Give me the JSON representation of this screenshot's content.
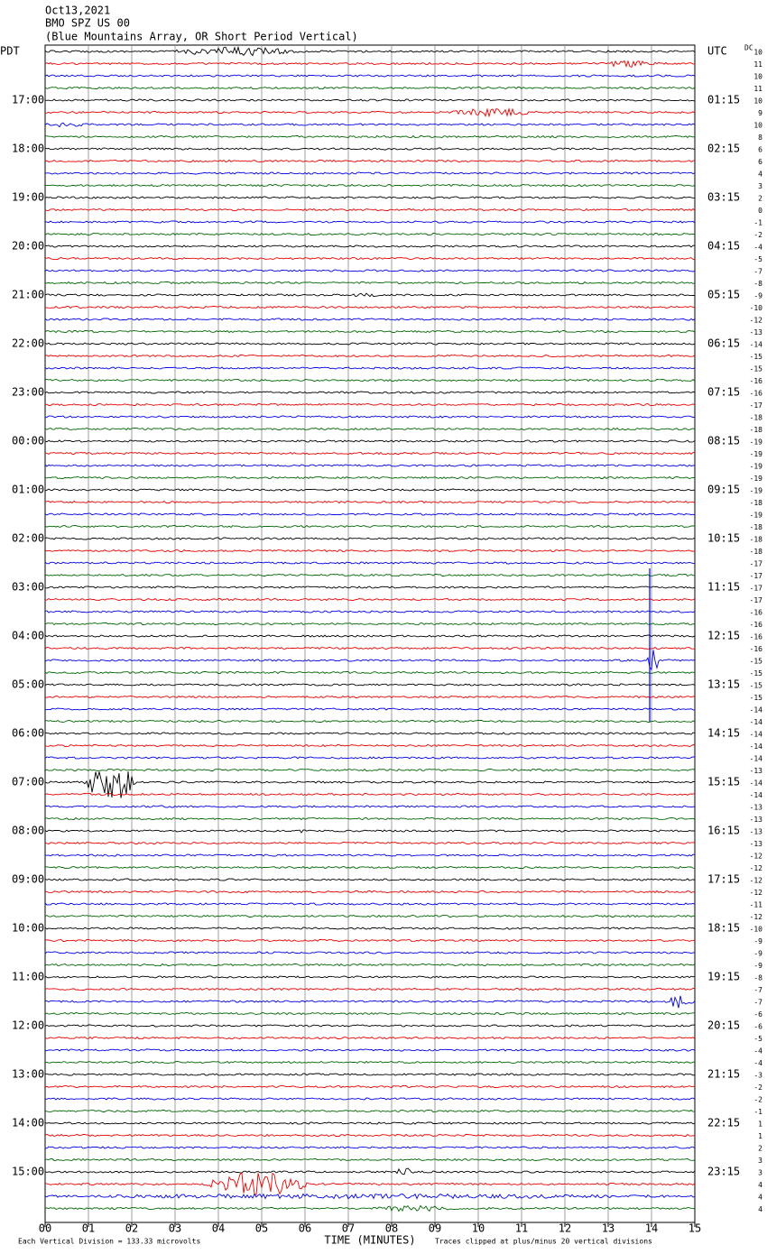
{
  "header": {
    "date": "Oct13,2021",
    "station": "BMO SPZ US 00",
    "description": "(Blue Mountains Array, OR Short Period Vertical)"
  },
  "left_axis": {
    "title": "PDT",
    "labels": [
      "17:00",
      "18:00",
      "19:00",
      "20:00",
      "21:00",
      "22:00",
      "23:00",
      "00:00",
      "01:00",
      "02:00",
      "03:00",
      "04:00",
      "05:00",
      "06:00",
      "07:00",
      "08:00",
      "09:00",
      "10:00",
      "11:00",
      "12:00",
      "13:00",
      "14:00",
      "15:00"
    ]
  },
  "right_axis": {
    "title": "UTC",
    "labels": [
      "01:15",
      "02:15",
      "03:15",
      "04:15",
      "05:15",
      "06:15",
      "07:15",
      "08:15",
      "09:15",
      "10:15",
      "11:15",
      "12:15",
      "13:15",
      "14:15",
      "15:15",
      "16:15",
      "17:15",
      "18:15",
      "19:15",
      "20:15",
      "21:15",
      "22:15",
      "23:15"
    ]
  },
  "dc": {
    "title": "DC",
    "values": [
      10,
      11,
      10,
      11,
      10,
      9,
      10,
      8,
      6,
      6,
      4,
      3,
      2,
      0,
      -1,
      -2,
      -4,
      -5,
      -7,
      -8,
      -9,
      -10,
      -12,
      -13,
      -14,
      -15,
      -15,
      -16,
      -16,
      -17,
      -18,
      -18,
      -19,
      -19,
      -19,
      -19,
      -19,
      -18,
      -19,
      -18,
      -18,
      -18,
      -17,
      -17,
      -17,
      -17,
      -16,
      -16,
      -16,
      -16,
      -15,
      -15,
      -15,
      -15,
      -14,
      -14,
      -14,
      -14,
      -14,
      -13,
      -14,
      -14,
      -13,
      -13,
      -13,
      -13,
      -12,
      -12,
      -12,
      -12,
      -11,
      -12,
      -10,
      -9,
      -9,
      -9,
      -8,
      -7,
      -7,
      -6,
      -6,
      -5,
      -4,
      -4,
      -3,
      -2,
      -2,
      -1,
      1,
      1,
      2,
      3,
      3,
      4,
      4,
      4
    ]
  },
  "x_axis": {
    "title": "TIME (MINUTES)",
    "ticks": [
      "00",
      "01",
      "02",
      "03",
      "04",
      "05",
      "06",
      "07",
      "08",
      "09",
      "10",
      "11",
      "12",
      "13",
      "14",
      "15"
    ]
  },
  "footer": {
    "scale": "Each Vertical Division =  133.33 microvolts",
    "clip": "Traces clipped at plus/minus 20 vertical divisions"
  }
}
